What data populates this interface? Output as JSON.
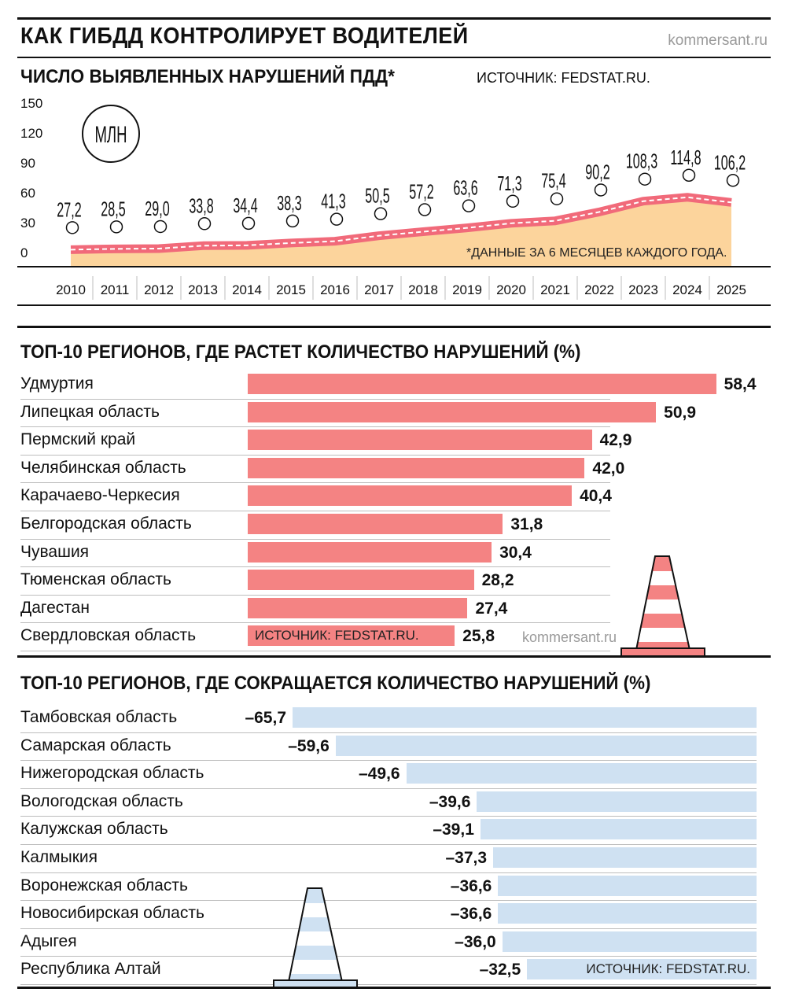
{
  "header": {
    "title": "КАК ГИБДД КОНТРОЛИРУЕТ ВОДИТЕЛЕЙ",
    "brand": "kommersant.ru"
  },
  "line_section": {
    "title": "ЧИСЛО ВЫЯВЛЕННЫХ НАРУШЕНИЙ ПДД*",
    "source": "ИСТОЧНИК: FEDSTAT.RU.",
    "unit_badge": "МЛН",
    "footnote": "*ДАННЫЕ ЗА 6 МЕСЯЦЕВ КАЖДОГО ГОДА."
  },
  "growth_section": {
    "title": "ТОП-10 РЕГИОНОВ, ГДЕ РАСТЕТ КОЛИЧЕСТВО НАРУШЕНИЙ (%)",
    "source": "ИСТОЧНИК: FEDSTAT.RU.",
    "brand": "kommersant.ru"
  },
  "decline_section": {
    "title": "ТОП-10 РЕГИОНОВ, ГДЕ СОКРАЩАЕТСЯ КОЛИЧЕСТВО НАРУШЕНИЙ (%)",
    "source": "ИСТОЧНИК: FEDSTAT.RU."
  },
  "colors": {
    "growth_bar": "#f48383",
    "decline_bar": "#cfe1f2",
    "area_fill": "#fcd49c",
    "line": "#f16a7a"
  },
  "chart_data": [
    {
      "type": "area",
      "title": "ЧИСЛО ВЫЯВЛЕННЫХ НАРУШЕНИЙ ПДД*",
      "ylabel": "МЛН",
      "x": [
        "2010",
        "2011",
        "2012",
        "2013",
        "2014",
        "2015",
        "2016",
        "2017",
        "2018",
        "2019",
        "2020",
        "2021",
        "2022",
        "2023",
        "2024",
        "2025"
      ],
      "values": [
        27.2,
        28.5,
        29.0,
        33.8,
        34.4,
        38.3,
        41.3,
        50.5,
        57.2,
        63.6,
        71.3,
        75.4,
        90.2,
        108.3,
        114.8,
        106.2
      ],
      "value_labels": [
        "27,2",
        "28,5",
        "29,0",
        "33,8",
        "34,4",
        "38,3",
        "41,3",
        "50,5",
        "57,2",
        "63,6",
        "71,3",
        "75,4",
        "90,2",
        "108,3",
        "114,8",
        "106,2"
      ],
      "yticks": [
        "0",
        "30",
        "60",
        "90",
        "120",
        "150"
      ],
      "ylim": [
        0,
        150
      ]
    },
    {
      "type": "bar",
      "title": "ТОП-10 РЕГИОНОВ, ГДЕ РАСТЕТ КОЛИЧЕСТВО НАРУШЕНИЙ (%)",
      "categories": [
        "Удмуртия",
        "Липецкая область",
        "Пермский край",
        "Челябинская область",
        "Карачаево-Черкесия",
        "Белгородская область",
        "Чувашия",
        "Тюменская область",
        "Дагестан",
        "Свердловская область"
      ],
      "values": [
        58.4,
        50.9,
        42.9,
        42.0,
        40.4,
        31.8,
        30.4,
        28.2,
        27.4,
        25.8
      ],
      "value_labels": [
        "58,4",
        "50,9",
        "42,9",
        "42,0",
        "40,4",
        "31,8",
        "30,4",
        "28,2",
        "27,4",
        "25,8"
      ]
    },
    {
      "type": "bar",
      "title": "ТОП-10 РЕГИОНОВ, ГДЕ СОКРАЩАЕТСЯ КОЛИЧЕСТВО НАРУШЕНИЙ (%)",
      "categories": [
        "Тамбовская область",
        "Самарская область",
        "Нижегородская область",
        "Вологодская область",
        "Калужская область",
        "Калмыкия",
        "Воронежская область",
        "Новосибирская область",
        "Адыгея",
        "Республика Алтай"
      ],
      "values": [
        -65.7,
        -59.6,
        -49.6,
        -39.6,
        -39.1,
        -37.3,
        -36.6,
        -36.6,
        -36.0,
        -32.5
      ],
      "value_labels": [
        "–65,7",
        "–59,6",
        "–49,6",
        "–39,6",
        "–39,1",
        "–37,3",
        "–36,6",
        "–36,6",
        "–36,0",
        "–32,5"
      ]
    }
  ]
}
